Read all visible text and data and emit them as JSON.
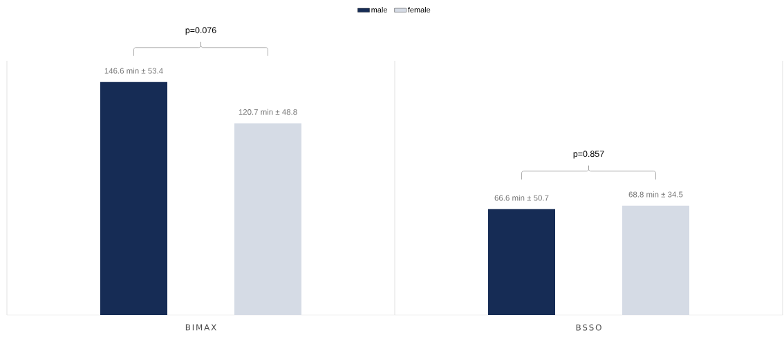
{
  "chart_data": {
    "type": "bar",
    "categories": [
      "BIMAX",
      "BSSO"
    ],
    "ylim": [
      0,
      160
    ],
    "legend": "top",
    "series": [
      {
        "name": "male",
        "color": "#162c55",
        "values": [
          146.6,
          66.6
        ],
        "value_labels": [
          "146.6 min ± 53.4",
          "66.6 min ± 50.7"
        ]
      },
      {
        "name": "female",
        "color": "#d5dbe5",
        "values": [
          120.7,
          68.8
        ],
        "value_labels": [
          "120.7 min ± 48.8",
          "68.8 min ± 34.5"
        ]
      }
    ],
    "annotations": [
      "p=0.076",
      "p=0.857"
    ]
  }
}
